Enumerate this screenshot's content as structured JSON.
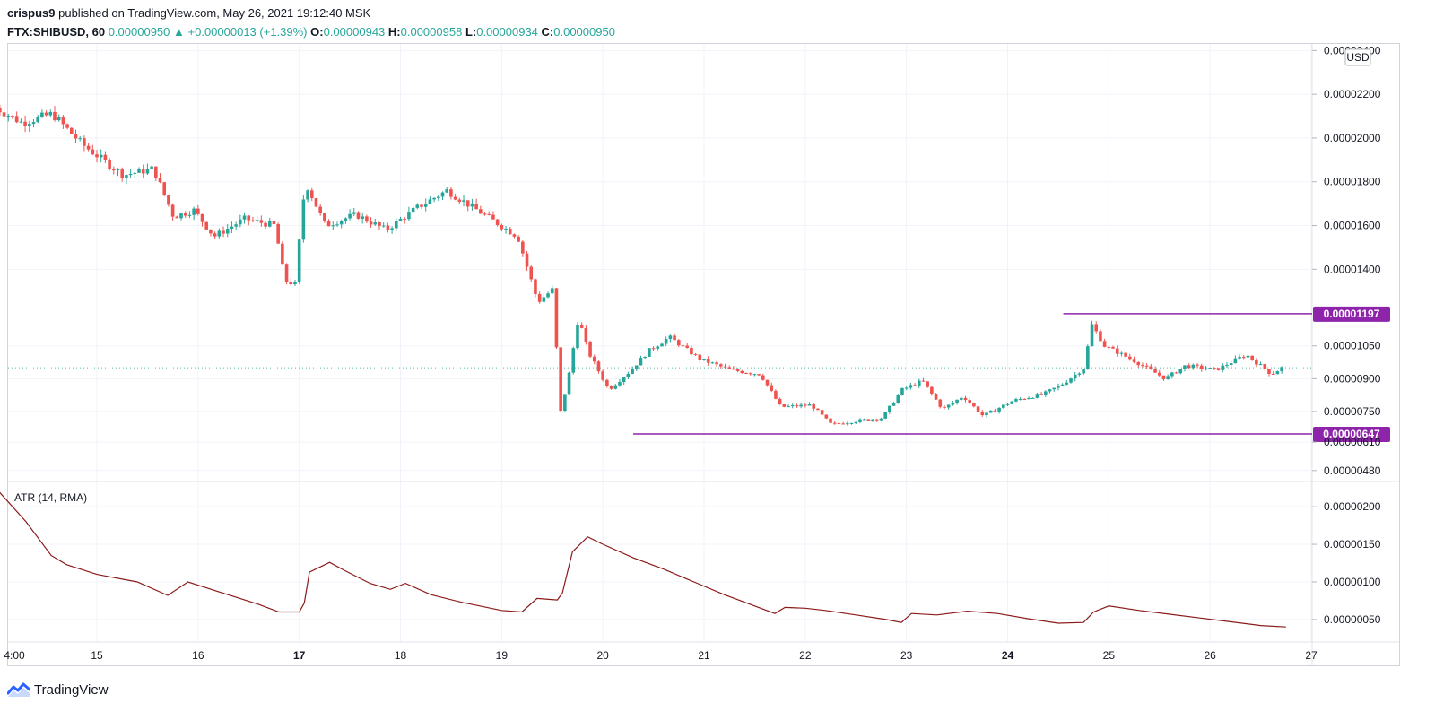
{
  "header": {
    "user": "crispus9",
    "published_text": "published on TradingView.com, May 26, 2021 19:12:40 MSK",
    "symbol": "FTX:SHIBUSD, 60",
    "last": "0.00000950",
    "change": "+0.00000013 (+1.39%)",
    "o_label": "O:",
    "o": "0.00000943",
    "h_label": "H:",
    "h": "0.00000958",
    "l_label": "L:",
    "l": "0.00000934",
    "c_label": "C:",
    "c": "0.00000950"
  },
  "footer": {
    "brand": "TradingView",
    "logo_icon": "tradingview-logo-icon"
  },
  "colors": {
    "up": "#26a69a",
    "down": "#ef5350",
    "level": "#8e24aa",
    "atr": "#8b1a1a",
    "grid": "#f0f3fa"
  },
  "chart_data": [
    {
      "type": "candlestick",
      "title": "",
      "currency": "USD",
      "ylim": [
        4.3e-06,
        2.43e-05
      ],
      "y_ticks": [
        "0.00000480",
        "0.00000610",
        "0.00000750",
        "0.00000900",
        "0.00001050",
        "0.00001400",
        "0.00001600",
        "0.00001800",
        "0.00002000",
        "0.00002200",
        "0.00002400"
      ],
      "x_ticks": [
        {
          "label": "4:00",
          "day": 14.0
        },
        {
          "label": "15",
          "day": 15
        },
        {
          "label": "16",
          "day": 16
        },
        {
          "label": "17",
          "day": 17
        },
        {
          "label": "18",
          "day": 18
        },
        {
          "label": "19",
          "day": 19
        },
        {
          "label": "20",
          "day": 20
        },
        {
          "label": "21",
          "day": 21
        },
        {
          "label": "22",
          "day": 22
        },
        {
          "label": "23",
          "day": 23
        },
        {
          "label": "24",
          "day": 24
        },
        {
          "label": "25",
          "day": 25
        },
        {
          "label": "26",
          "day": 26
        },
        {
          "label": "27",
          "day": 27
        }
      ],
      "bold_x_ticks": [
        "17",
        "24"
      ],
      "current_price": 9.5e-06,
      "levels": [
        {
          "label": "0.00001197",
          "value": 1.197e-05,
          "from_day": 24.55
        },
        {
          "label": "0.00000647",
          "value": 6.47e-06,
          "from_day": 20.3
        }
      ],
      "series_anchors": [
        [
          14.0,
          2.15e-05
        ],
        [
          14.3,
          2.07e-05
        ],
        [
          14.6,
          2.11e-05
        ],
        [
          14.9,
          1.97e-05
        ],
        [
          15.3,
          1.83e-05
        ],
        [
          15.6,
          1.86e-05
        ],
        [
          15.8,
          1.64e-05
        ],
        [
          16.0,
          1.67e-05
        ],
        [
          16.2,
          1.55e-05
        ],
        [
          16.5,
          1.63e-05
        ],
        [
          16.8,
          1.6e-05
        ],
        [
          16.9,
          1.35e-05
        ],
        [
          17.0,
          1.33e-05
        ],
        [
          17.1,
          1.8e-05
        ],
        [
          17.3,
          1.6e-05
        ],
        [
          17.6,
          1.65e-05
        ],
        [
          17.9,
          1.58e-05
        ],
        [
          18.2,
          1.68e-05
        ],
        [
          18.5,
          1.76e-05
        ],
        [
          18.7,
          1.7e-05
        ],
        [
          18.9,
          1.64e-05
        ],
        [
          19.2,
          1.55e-05
        ],
        [
          19.4,
          1.25e-05
        ],
        [
          19.55,
          1.31e-05
        ],
        [
          19.62,
          7.4e-06
        ],
        [
          19.7,
          9e-06
        ],
        [
          19.8,
          1.18e-05
        ],
        [
          19.9,
          1.02e-05
        ],
        [
          20.1,
          8.5e-06
        ],
        [
          20.3,
          9.3e-06
        ],
        [
          20.5,
          1.03e-05
        ],
        [
          20.7,
          1.09e-05
        ],
        [
          21.0,
          9.9e-06
        ],
        [
          21.3,
          9.4e-06
        ],
        [
          21.6,
          9.2e-06
        ],
        [
          21.8,
          7.7e-06
        ],
        [
          22.1,
          7.8e-06
        ],
        [
          22.3,
          6.9e-06
        ],
        [
          22.6,
          7.1e-06
        ],
        [
          22.8,
          7.2e-06
        ],
        [
          23.0,
          8.5e-06
        ],
        [
          23.2,
          8.9e-06
        ],
        [
          23.4,
          7.6e-06
        ],
        [
          23.6,
          8.2e-06
        ],
        [
          23.8,
          7.3e-06
        ],
        [
          24.1,
          8e-06
        ],
        [
          24.4,
          8.3e-06
        ],
        [
          24.6,
          8.8e-06
        ],
        [
          24.8,
          9.5e-06
        ],
        [
          24.87,
          1.15e-05
        ],
        [
          25.0,
          1.05e-05
        ],
        [
          25.3,
          9.8e-06
        ],
        [
          25.6,
          9e-06
        ],
        [
          25.8,
          9.6e-06
        ],
        [
          26.1,
          9.4e-06
        ],
        [
          26.4,
          1.01e-05
        ],
        [
          26.65,
          9.2e-06
        ],
        [
          26.75,
          9.5e-06
        ]
      ]
    },
    {
      "type": "line",
      "title": "ATR (14, RMA)",
      "ylim": [
        2e-07,
        2.3e-06
      ],
      "y_ticks": [
        "0.00000050",
        "0.00000100",
        "0.00000150",
        "0.00000200"
      ],
      "series": [
        {
          "name": "ATR (14, RMA)",
          "points": [
            [
              14.0,
              2.25e-06
            ],
            [
              14.3,
              1.8e-06
            ],
            [
              14.55,
              1.35e-06
            ],
            [
              14.7,
              1.23e-06
            ],
            [
              15.0,
              1.1e-06
            ],
            [
              15.4,
              1e-06
            ],
            [
              15.7,
              8.2e-07
            ],
            [
              15.9,
              1e-06
            ],
            [
              16.2,
              8.7e-07
            ],
            [
              16.6,
              7e-07
            ],
            [
              16.8,
              6e-07
            ],
            [
              17.0,
              6e-07
            ],
            [
              17.05,
              7.2e-07
            ],
            [
              17.1,
              1.13e-06
            ],
            [
              17.3,
              1.26e-06
            ],
            [
              17.45,
              1.15e-06
            ],
            [
              17.7,
              9.8e-07
            ],
            [
              17.9,
              9e-07
            ],
            [
              18.05,
              9.8e-07
            ],
            [
              18.3,
              8.3e-07
            ],
            [
              18.6,
              7.3e-07
            ],
            [
              19.0,
              6.2e-07
            ],
            [
              19.2,
              6e-07
            ],
            [
              19.35,
              7.8e-07
            ],
            [
              19.55,
              7.6e-07
            ],
            [
              19.6,
              8.5e-07
            ],
            [
              19.7,
              1.4e-06
            ],
            [
              19.85,
              1.6e-06
            ],
            [
              20.0,
              1.5e-06
            ],
            [
              20.3,
              1.32e-06
            ],
            [
              20.6,
              1.17e-06
            ],
            [
              20.9,
              1e-06
            ],
            [
              21.2,
              8.3e-07
            ],
            [
              21.5,
              6.8e-07
            ],
            [
              21.7,
              5.8e-07
            ],
            [
              21.8,
              6.6e-07
            ],
            [
              22.0,
              6.5e-07
            ],
            [
              22.2,
              6.2e-07
            ],
            [
              22.5,
              5.6e-07
            ],
            [
              22.8,
              5e-07
            ],
            [
              22.95,
              4.6e-07
            ],
            [
              23.05,
              5.8e-07
            ],
            [
              23.3,
              5.6e-07
            ],
            [
              23.6,
              6.1e-07
            ],
            [
              23.9,
              5.8e-07
            ],
            [
              24.2,
              5.1e-07
            ],
            [
              24.5,
              4.5e-07
            ],
            [
              24.75,
              4.6e-07
            ],
            [
              24.85,
              6e-07
            ],
            [
              25.0,
              6.8e-07
            ],
            [
              25.3,
              6.2e-07
            ],
            [
              25.6,
              5.7e-07
            ],
            [
              25.9,
              5.2e-07
            ],
            [
              26.2,
              4.7e-07
            ],
            [
              26.5,
              4.2e-07
            ],
            [
              26.75,
              4e-07
            ]
          ]
        }
      ]
    }
  ]
}
